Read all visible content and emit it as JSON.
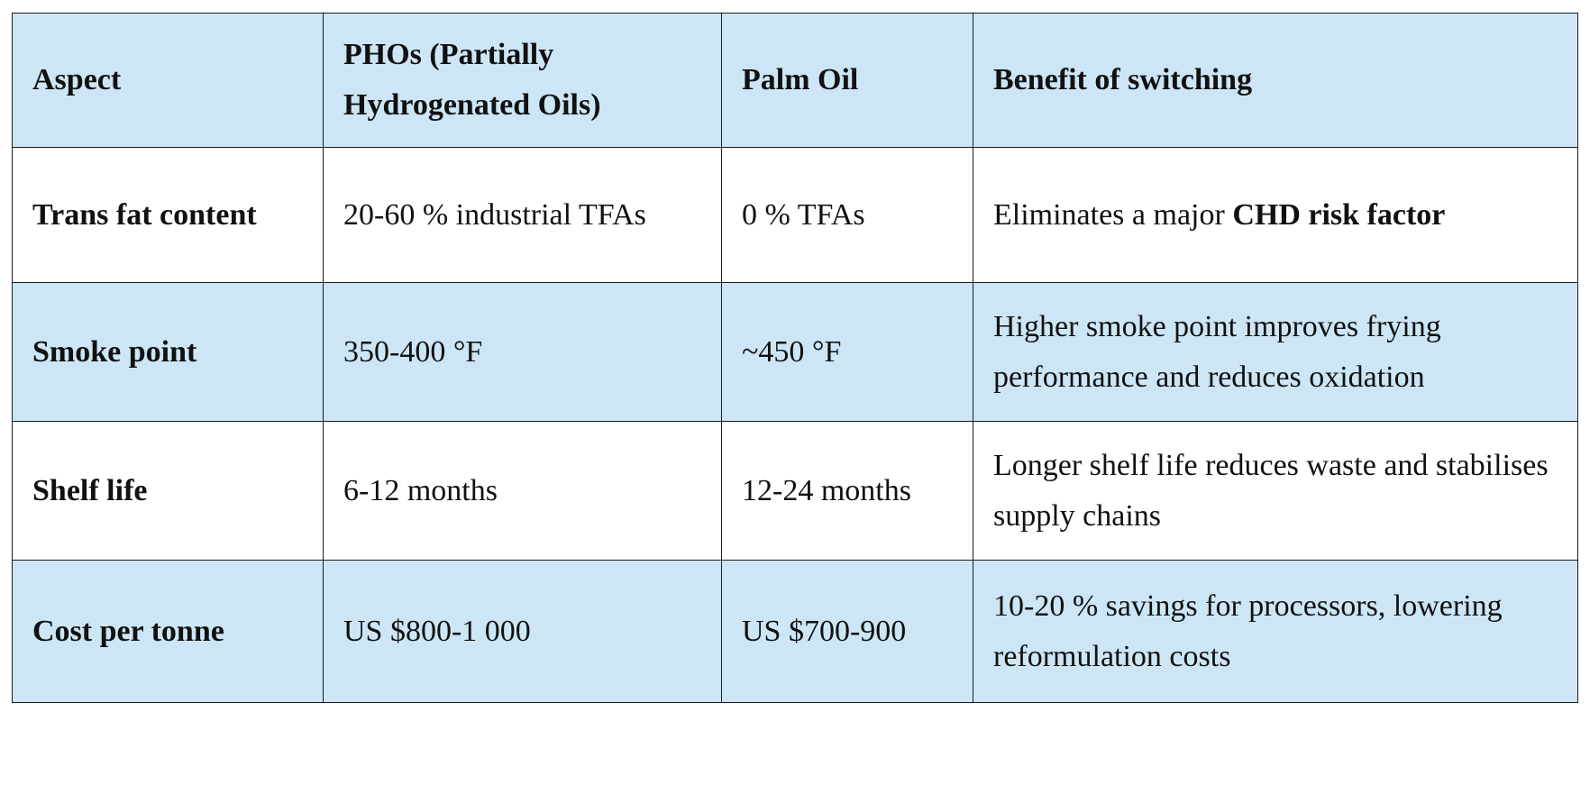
{
  "table": {
    "headers": {
      "aspect": "Aspect",
      "pho": "PHOs (Partially Hydrogenated Oils)",
      "palm": "Palm Oil",
      "benefit": "Benefit of switching"
    },
    "rows": [
      {
        "aspect": "Trans fat content",
        "pho": "20-60 % industrial TFAs",
        "palm": "0 % TFAs",
        "benefit_prefix": "Eliminates a major ",
        "benefit_strong": "CHD risk factor"
      },
      {
        "aspect": "Smoke point",
        "pho": "350-400 °F",
        "palm": "~450 °F",
        "benefit": "Higher smoke point improves frying performance and reduces oxidation"
      },
      {
        "aspect": "Shelf life",
        "pho": "6-12 months",
        "palm": "12-24 months",
        "benefit": "Longer shelf life reduces waste and stabilises supply chains"
      },
      {
        "aspect": "Cost per tonne",
        "pho": "US $800-1 000",
        "palm": "US $700-900",
        "benefit": "10-20 % savings for processors, lowering reformulation costs"
      }
    ]
  },
  "colors": {
    "header_shade": "#cde6f6",
    "border": "#1a1a1a",
    "white": "#ffffff"
  }
}
